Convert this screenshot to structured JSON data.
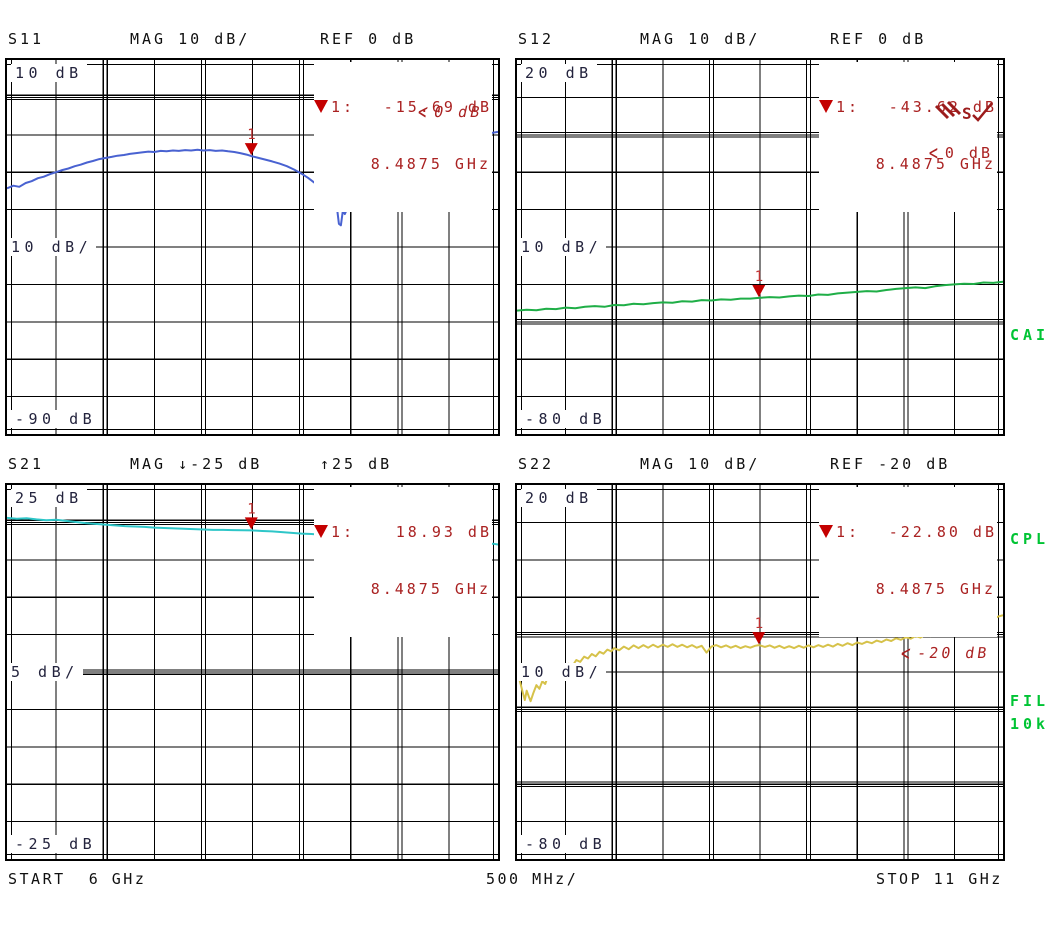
{
  "colors": {
    "grid": "#000000",
    "scale_text": "#23233d",
    "header_text": "#101010",
    "marker_text_red": "#aa2222",
    "marker_fill_red": "#c40000",
    "side_label_green": "#00c434",
    "background": "#ffffff"
  },
  "x_axis": {
    "start_label": "START  6 GHz",
    "per_div_label": "500 MHz/",
    "stop_label": "STOP 11 GHz",
    "start_ghz": 6,
    "stop_ghz": 11
  },
  "side_labels": {
    "cai": "CAI",
    "cpl": "CPL",
    "fil": "FIL",
    "k10": "10k"
  },
  "chart_data": [
    {
      "id": "s11",
      "type": "line",
      "title": "S11",
      "header_scale": "MAG 10 dB/",
      "header_ref": "REF 0 dB",
      "scale": {
        "top": "10 dB",
        "mid": "10 dB/",
        "bottom": "-90 dB"
      },
      "y_top_db": 10,
      "y_bottom_db": -90,
      "db_per_div": 10,
      "ref_db": 0,
      "extra_double_rows": [],
      "ref_arrow": "<",
      "ref_annotation": "0 dB",
      "marker": {
        "number": "1",
        "label": "1:",
        "value_db": -15.69,
        "value_text": "-15.69 dB",
        "freq_ghz": 8.4875,
        "freq_text": "8.4875 GHz"
      },
      "trace_color": "#4962d1",
      "series": [
        [
          0,
          -24.3
        ],
        [
          0.013,
          -23.6
        ],
        [
          0.025,
          -23.9
        ],
        [
          0.038,
          -22.9
        ],
        [
          0.05,
          -22.4
        ],
        [
          0.063,
          -21.6
        ],
        [
          0.075,
          -21.2
        ],
        [
          0.088,
          -20.5
        ],
        [
          0.1,
          -20.0
        ],
        [
          0.113,
          -19.4
        ],
        [
          0.125,
          -19.0
        ],
        [
          0.138,
          -18.4
        ],
        [
          0.15,
          -18.0
        ],
        [
          0.163,
          -17.4
        ],
        [
          0.175,
          -17.0
        ],
        [
          0.188,
          -16.5
        ],
        [
          0.2,
          -16.2
        ],
        [
          0.213,
          -15.9
        ],
        [
          0.225,
          -15.6
        ],
        [
          0.238,
          -15.4
        ],
        [
          0.25,
          -15.1
        ],
        [
          0.263,
          -14.9
        ],
        [
          0.275,
          -14.7
        ],
        [
          0.288,
          -14.5
        ],
        [
          0.3,
          -14.6
        ],
        [
          0.313,
          -14.3
        ],
        [
          0.325,
          -14.4
        ],
        [
          0.338,
          -14.2
        ],
        [
          0.35,
          -14.3
        ],
        [
          0.363,
          -14.1
        ],
        [
          0.375,
          -14.2
        ],
        [
          0.388,
          -14.0
        ],
        [
          0.4,
          -14.2
        ],
        [
          0.413,
          -14.1
        ],
        [
          0.425,
          -14.3
        ],
        [
          0.438,
          -14.2
        ],
        [
          0.45,
          -14.4
        ],
        [
          0.463,
          -14.6
        ],
        [
          0.475,
          -14.9
        ],
        [
          0.488,
          -15.3
        ],
        [
          0.4975,
          -15.69
        ],
        [
          0.51,
          -16.1
        ],
        [
          0.525,
          -16.6
        ],
        [
          0.54,
          -17.1
        ],
        [
          0.555,
          -17.7
        ],
        [
          0.57,
          -18.4
        ],
        [
          0.585,
          -19.3
        ],
        [
          0.6,
          -20.4
        ],
        [
          0.613,
          -21.5
        ],
        [
          0.625,
          -22.7
        ],
        [
          0.638,
          -24.2
        ],
        [
          0.65,
          -26.0
        ],
        [
          0.658,
          -27.2
        ],
        [
          0.663,
          -28.6
        ],
        [
          0.668,
          -28.0
        ],
        [
          0.672,
          -29.6
        ],
        [
          0.676,
          -33.8
        ],
        [
          0.68,
          -34.2
        ],
        [
          0.684,
          -30.4
        ],
        [
          0.688,
          -31.2
        ],
        [
          0.692,
          -30.0
        ],
        [
          0.7,
          -28.2
        ],
        [
          0.713,
          -26.3
        ],
        [
          0.725,
          -24.8
        ],
        [
          0.738,
          -23.2
        ],
        [
          0.75,
          -21.9
        ],
        [
          0.763,
          -20.6
        ],
        [
          0.775,
          -19.6
        ],
        [
          0.788,
          -18.6
        ],
        [
          0.8,
          -17.6
        ],
        [
          0.813,
          -16.7
        ],
        [
          0.825,
          -15.9
        ],
        [
          0.838,
          -15.1
        ],
        [
          0.85,
          -14.4
        ],
        [
          0.863,
          -13.7
        ],
        [
          0.875,
          -13.1
        ],
        [
          0.888,
          -12.6
        ],
        [
          0.9,
          -12.0
        ],
        [
          0.913,
          -11.5
        ],
        [
          0.925,
          -11.1
        ],
        [
          0.938,
          -10.7
        ],
        [
          0.95,
          -10.4
        ],
        [
          0.963,
          -10.0
        ],
        [
          0.975,
          -9.7
        ],
        [
          0.988,
          -9.5
        ],
        [
          1,
          -9.2
        ]
      ]
    },
    {
      "id": "s12",
      "type": "line",
      "title": "S12",
      "header_scale": "MAG 10 dB/",
      "header_ref": "REF 0 dB",
      "scale": {
        "top": "20 dB",
        "mid": "10 dB/",
        "bottom": "-80 dB"
      },
      "y_top_db": 20,
      "y_bottom_db": -80,
      "db_per_div": 10,
      "ref_db": 0,
      "extra_double_rows": [
        7
      ],
      "ref_arrow": "<",
      "ref_annotation": "0 dB",
      "marker": {
        "number": "1",
        "label": "1:",
        "value_db": -43.62,
        "value_text": "-43.62 dB",
        "freq_ghz": 8.4875,
        "freq_text": "8.4875 GHz"
      },
      "trace_color": "#1fae47",
      "series": [
        [
          0,
          -47.0
        ],
        [
          0.02,
          -46.8
        ],
        [
          0.04,
          -46.9
        ],
        [
          0.06,
          -46.5
        ],
        [
          0.08,
          -46.6
        ],
        [
          0.1,
          -46.2
        ],
        [
          0.12,
          -46.4
        ],
        [
          0.14,
          -46.0
        ],
        [
          0.16,
          -45.8
        ],
        [
          0.18,
          -46.0
        ],
        [
          0.2,
          -45.5
        ],
        [
          0.22,
          -45.6
        ],
        [
          0.24,
          -45.2
        ],
        [
          0.26,
          -45.3
        ],
        [
          0.28,
          -45.0
        ],
        [
          0.3,
          -44.8
        ],
        [
          0.32,
          -44.9
        ],
        [
          0.34,
          -44.5
        ],
        [
          0.36,
          -44.6
        ],
        [
          0.38,
          -44.2
        ],
        [
          0.4,
          -44.3
        ],
        [
          0.42,
          -44.0
        ],
        [
          0.44,
          -44.1
        ],
        [
          0.46,
          -43.8
        ],
        [
          0.48,
          -43.8
        ],
        [
          0.4975,
          -43.62
        ],
        [
          0.52,
          -43.4
        ],
        [
          0.54,
          -43.5
        ],
        [
          0.56,
          -43.2
        ],
        [
          0.58,
          -43.0
        ],
        [
          0.6,
          -43.1
        ],
        [
          0.62,
          -42.7
        ],
        [
          0.64,
          -42.8
        ],
        [
          0.66,
          -42.4
        ],
        [
          0.68,
          -42.2
        ],
        [
          0.7,
          -42.0
        ],
        [
          0.72,
          -41.8
        ],
        [
          0.74,
          -41.9
        ],
        [
          0.76,
          -41.5
        ],
        [
          0.78,
          -41.2
        ],
        [
          0.8,
          -41.0
        ],
        [
          0.82,
          -40.8
        ],
        [
          0.84,
          -41.0
        ],
        [
          0.86,
          -40.5
        ],
        [
          0.88,
          -40.2
        ],
        [
          0.9,
          -40.0
        ],
        [
          0.92,
          -39.8
        ],
        [
          0.94,
          -39.9
        ],
        [
          0.96,
          -39.5
        ],
        [
          0.98,
          -39.6
        ],
        [
          1,
          -39.3
        ]
      ]
    },
    {
      "id": "s21",
      "type": "line",
      "title": "S21",
      "header_scale": "MAG ↓-25 dB",
      "header_ref": "↑25 dB",
      "scale": {
        "top": "25 dB",
        "mid": "5 dB/",
        "bottom": "-25 dB"
      },
      "y_top_db": 25,
      "y_bottom_db": -25,
      "db_per_div": 5,
      "ref_db": 20,
      "extra_double_rows": [
        5
      ],
      "ref_arrow": "",
      "ref_annotation": "",
      "marker": {
        "number": "1",
        "label": "1:",
        "value_db": 18.93,
        "value_text": "18.93 dB",
        "freq_ghz": 8.4875,
        "freq_text": "8.4875 GHz"
      },
      "trace_color": "#2ec6c8",
      "series": [
        [
          0,
          20.6
        ],
        [
          0.02,
          20.5
        ],
        [
          0.04,
          20.55
        ],
        [
          0.06,
          20.4
        ],
        [
          0.08,
          20.3
        ],
        [
          0.1,
          20.35
        ],
        [
          0.12,
          20.2
        ],
        [
          0.14,
          20.05
        ],
        [
          0.16,
          19.9
        ],
        [
          0.18,
          19.8
        ],
        [
          0.2,
          19.7
        ],
        [
          0.22,
          19.6
        ],
        [
          0.24,
          19.5
        ],
        [
          0.26,
          19.45
        ],
        [
          0.28,
          19.4
        ],
        [
          0.3,
          19.3
        ],
        [
          0.32,
          19.25
        ],
        [
          0.34,
          19.2
        ],
        [
          0.36,
          19.15
        ],
        [
          0.38,
          19.1
        ],
        [
          0.4,
          19.05
        ],
        [
          0.42,
          19.0
        ],
        [
          0.44,
          19.0
        ],
        [
          0.46,
          18.97
        ],
        [
          0.48,
          18.95
        ],
        [
          0.4975,
          18.93
        ],
        [
          0.52,
          18.85
        ],
        [
          0.54,
          18.8
        ],
        [
          0.56,
          18.7
        ],
        [
          0.58,
          18.6
        ],
        [
          0.6,
          18.5
        ],
        [
          0.62,
          18.45
        ],
        [
          0.64,
          18.35
        ],
        [
          0.66,
          18.25
        ],
        [
          0.68,
          18.15
        ],
        [
          0.7,
          18.1
        ],
        [
          0.72,
          18.0
        ],
        [
          0.74,
          17.95
        ],
        [
          0.76,
          17.85
        ],
        [
          0.78,
          17.8
        ],
        [
          0.8,
          17.7
        ],
        [
          0.82,
          17.65
        ],
        [
          0.84,
          17.55
        ],
        [
          0.86,
          17.5
        ],
        [
          0.88,
          17.45
        ],
        [
          0.9,
          17.3
        ],
        [
          0.91,
          17.5
        ],
        [
          0.92,
          17.2
        ],
        [
          0.93,
          17.4
        ],
        [
          0.94,
          17.1
        ],
        [
          0.95,
          17.3
        ],
        [
          0.96,
          17.05
        ],
        [
          0.97,
          17.25
        ],
        [
          0.98,
          17.0
        ],
        [
          0.99,
          17.15
        ],
        [
          1,
          17.05
        ]
      ]
    },
    {
      "id": "s22",
      "type": "line",
      "title": "S22",
      "header_scale": "MAG 10 dB/",
      "header_ref": "REF -20 dB",
      "scale": {
        "top": "20 dB",
        "mid": "10 dB/",
        "bottom": "-80 dB"
      },
      "y_top_db": 20,
      "y_bottom_db": -80,
      "db_per_div": 10,
      "ref_db": -20,
      "extra_double_rows": [
        6,
        8
      ],
      "ref_arrow": "<",
      "ref_annotation": "-20 dB",
      "marker": {
        "number": "1",
        "label": "1:",
        "value_db": -22.8,
        "value_text": "-22.80 dB",
        "freq_ghz": 8.4875,
        "freq_text": "8.4875 GHz"
      },
      "trace_color": "#d6c24a",
      "series": [
        [
          0,
          -30.0
        ],
        [
          0.006,
          -32.5
        ],
        [
          0.012,
          -35.5
        ],
        [
          0.016,
          -37.5
        ],
        [
          0.02,
          -35.0
        ],
        [
          0.024,
          -36.5
        ],
        [
          0.028,
          -37.8
        ],
        [
          0.034,
          -35.5
        ],
        [
          0.04,
          -33.5
        ],
        [
          0.046,
          -34.5
        ],
        [
          0.052,
          -32.5
        ],
        [
          0.058,
          -33.2
        ],
        [
          0.064,
          -31.0
        ],
        [
          0.07,
          -31.8
        ],
        [
          0.076,
          -30.0
        ],
        [
          0.082,
          -30.6
        ],
        [
          0.09,
          -28.8
        ],
        [
          0.098,
          -29.4
        ],
        [
          0.106,
          -27.8
        ],
        [
          0.114,
          -28.4
        ],
        [
          0.122,
          -26.8
        ],
        [
          0.13,
          -27.3
        ],
        [
          0.138,
          -25.9
        ],
        [
          0.146,
          -26.4
        ],
        [
          0.154,
          -25.2
        ],
        [
          0.162,
          -25.8
        ],
        [
          0.17,
          -24.6
        ],
        [
          0.178,
          -25.1
        ],
        [
          0.186,
          -24.0
        ],
        [
          0.194,
          -24.5
        ],
        [
          0.2,
          -23.6
        ],
        [
          0.21,
          -24.2
        ],
        [
          0.22,
          -23.2
        ],
        [
          0.23,
          -23.9
        ],
        [
          0.24,
          -22.9
        ],
        [
          0.25,
          -23.6
        ],
        [
          0.26,
          -22.8
        ],
        [
          0.27,
          -23.5
        ],
        [
          0.28,
          -22.7
        ],
        [
          0.29,
          -23.4
        ],
        [
          0.3,
          -22.7
        ],
        [
          0.31,
          -23.3
        ],
        [
          0.32,
          -22.6
        ],
        [
          0.33,
          -23.3
        ],
        [
          0.34,
          -22.7
        ],
        [
          0.35,
          -23.4
        ],
        [
          0.36,
          -22.8
        ],
        [
          0.37,
          -23.5
        ],
        [
          0.38,
          -23.0
        ],
        [
          0.39,
          -24.8
        ],
        [
          0.4,
          -23.2
        ],
        [
          0.41,
          -22.8
        ],
        [
          0.42,
          -23.4
        ],
        [
          0.43,
          -22.9
        ],
        [
          0.44,
          -23.5
        ],
        [
          0.45,
          -23.0
        ],
        [
          0.46,
          -23.6
        ],
        [
          0.47,
          -23.1
        ],
        [
          0.48,
          -23.5
        ],
        [
          0.49,
          -23.0
        ],
        [
          0.4975,
          -22.8
        ],
        [
          0.51,
          -23.3
        ],
        [
          0.52,
          -22.9
        ],
        [
          0.53,
          -23.5
        ],
        [
          0.54,
          -23.0
        ],
        [
          0.55,
          -23.6
        ],
        [
          0.56,
          -23.1
        ],
        [
          0.57,
          -23.6
        ],
        [
          0.58,
          -23.0
        ],
        [
          0.59,
          -23.5
        ],
        [
          0.6,
          -22.9
        ],
        [
          0.61,
          -23.4
        ],
        [
          0.62,
          -22.8
        ],
        [
          0.63,
          -23.3
        ],
        [
          0.64,
          -22.7
        ],
        [
          0.65,
          -23.2
        ],
        [
          0.66,
          -22.5
        ],
        [
          0.67,
          -23.0
        ],
        [
          0.68,
          -22.3
        ],
        [
          0.69,
          -22.8
        ],
        [
          0.7,
          -22.1
        ],
        [
          0.71,
          -22.5
        ],
        [
          0.72,
          -21.9
        ],
        [
          0.73,
          -22.3
        ],
        [
          0.74,
          -21.6
        ],
        [
          0.75,
          -22.0
        ],
        [
          0.76,
          -21.3
        ],
        [
          0.77,
          -21.7
        ],
        [
          0.78,
          -21.0
        ],
        [
          0.79,
          -21.4
        ],
        [
          0.8,
          -20.7
        ],
        [
          0.81,
          -21.1
        ],
        [
          0.82,
          -20.4
        ],
        [
          0.83,
          -20.8
        ],
        [
          0.84,
          -20.0
        ],
        [
          0.85,
          -20.4
        ],
        [
          0.86,
          -19.6
        ],
        [
          0.87,
          -19.9
        ],
        [
          0.88,
          -19.2
        ],
        [
          0.89,
          -18.6
        ],
        [
          0.9,
          -18.9
        ],
        [
          0.91,
          -18.2
        ],
        [
          0.92,
          -18.5
        ],
        [
          0.93,
          -17.8
        ],
        [
          0.94,
          -17.3
        ],
        [
          0.95,
          -17.6
        ],
        [
          0.96,
          -16.2
        ],
        [
          0.97,
          -16.5
        ],
        [
          0.98,
          -15.8
        ],
        [
          0.99,
          -15.2
        ],
        [
          1,
          -14.8
        ]
      ]
    }
  ]
}
